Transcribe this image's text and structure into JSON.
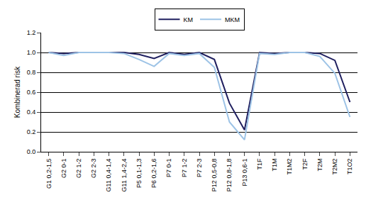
{
  "chart_data": {
    "type": "line",
    "y_label": "Kombinerad risk",
    "categories": [
      "G1 0,2-1,5",
      "G2 0-1",
      "G2 1-2",
      "G2 2-3",
      "G11 0,4-1,4",
      "G11 1,4-2,4",
      "P5 0,1-1,3",
      "P6 0,2-1,6",
      "P7 0-1",
      "P7 1-2",
      "P7 2-3",
      "P12 0,5-0,8",
      "P12 0,8-1,8",
      "P13 0,6-1",
      "T1F",
      "T1M",
      "T1M2",
      "T2F",
      "T2M",
      "T2M2",
      "T1O2"
    ],
    "series": [
      {
        "name": "KM",
        "color": "#1f1f5f",
        "values": [
          1.0,
          0.99,
          1.0,
          1.0,
          1.0,
          1.0,
          0.98,
          0.94,
          1.0,
          0.98,
          1.0,
          0.93,
          0.49,
          0.22,
          1.0,
          0.99,
          1.0,
          1.0,
          0.99,
          0.92,
          0.5
        ]
      },
      {
        "name": "MKM",
        "color": "#9dc3e6",
        "values": [
          1.0,
          0.97,
          1.0,
          1.0,
          1.0,
          0.99,
          0.93,
          0.86,
          0.99,
          0.97,
          0.99,
          0.85,
          0.3,
          0.12,
          0.99,
          0.98,
          1.0,
          1.0,
          0.96,
          0.79,
          0.35
        ]
      }
    ],
    "ylim": [
      0,
      1.2
    ],
    "yticks": [
      {
        "value": 0,
        "label": "0.0"
      },
      {
        "value": 0.2,
        "label": "0.2"
      },
      {
        "value": 0.4,
        "label": "0.4"
      },
      {
        "value": 0.6,
        "label": "0.6"
      },
      {
        "value": 0.8,
        "label": "0.8"
      },
      {
        "value": 1,
        "label": "1.0"
      },
      {
        "value": 1.2,
        "label": "1.2"
      }
    ],
    "grid": true,
    "legend": "top"
  }
}
